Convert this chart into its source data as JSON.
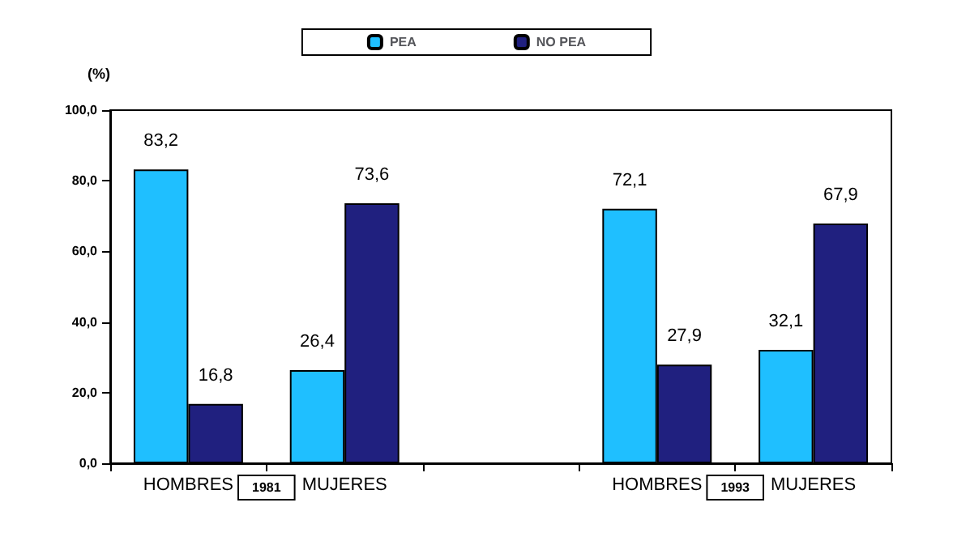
{
  "chart_data": {
    "type": "bar",
    "ylabel": "(%)",
    "categories": [
      "HOMBRES",
      "MUJERES",
      null,
      "HOMBRES",
      "MUJERES"
    ],
    "series": [
      {
        "name": "PEA",
        "color": "#1fbfff",
        "values": [
          83.2,
          26.4,
          null,
          72.1,
          32.1
        ],
        "value_labels": [
          "83,2",
          "26,4",
          null,
          "72,1",
          "32,1"
        ]
      },
      {
        "name": "NO PEA",
        "color": "#20207f",
        "values": [
          16.8,
          73.6,
          null,
          27.9,
          67.9
        ],
        "value_labels": [
          "16,8",
          "73,6",
          null,
          "27,9",
          "67,9"
        ]
      }
    ],
    "ylim": [
      0,
      100
    ],
    "yticks": [
      {
        "value": 0,
        "label": "0,0"
      },
      {
        "value": 20,
        "label": "20,0"
      },
      {
        "value": 40,
        "label": "40,0"
      },
      {
        "value": 60,
        "label": "60,0"
      },
      {
        "value": 80,
        "label": "80,0"
      },
      {
        "value": 100,
        "label": "100,0"
      }
    ],
    "grid": false,
    "legend": "top",
    "annotations": [
      "1981",
      "1993"
    ]
  }
}
